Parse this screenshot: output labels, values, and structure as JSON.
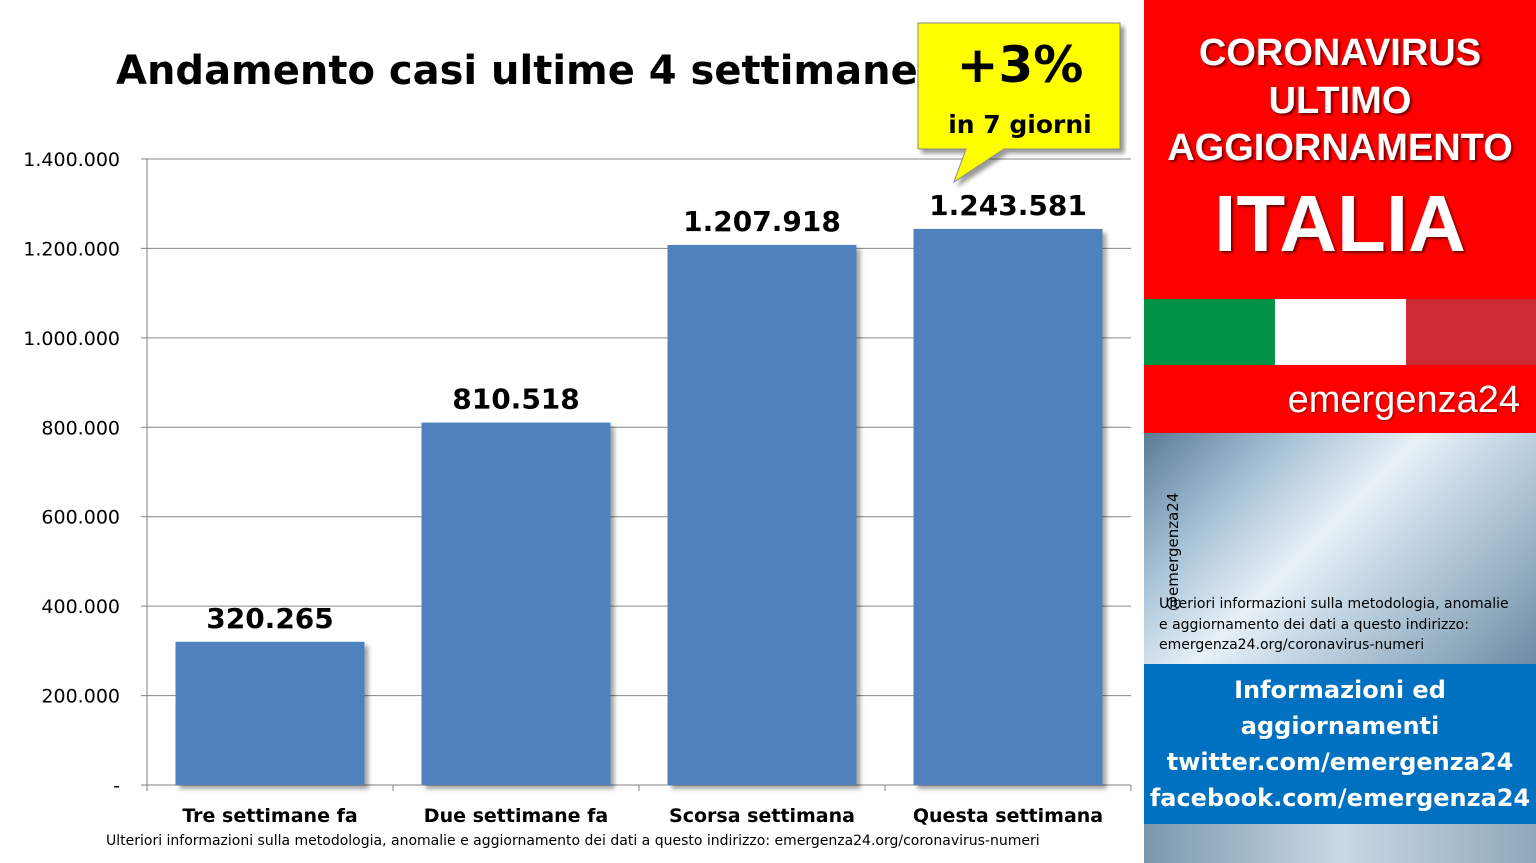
{
  "chart_data": {
    "type": "bar",
    "title": "Andamento casi ultime 4 settimane",
    "categories": [
      "Tre settimane fa",
      "Due settimane fa",
      "Scorsa settimana",
      "Questa settimana"
    ],
    "values": [
      320265,
      810518,
      1207918,
      1243581
    ],
    "value_labels": [
      "320.265",
      "810.518",
      "1.207.918",
      "1.243.581"
    ],
    "ylim": [
      0,
      1400000
    ],
    "y_ticks": [
      0,
      200000,
      400000,
      600000,
      800000,
      1000000,
      1200000,
      1400000
    ],
    "y_tick_labels": [
      "-",
      "200.000",
      "400.000",
      "600.000",
      "800.000",
      "1.000.000",
      "1.200.000",
      "1.400.000"
    ],
    "grid": true,
    "bar_color": "#4f81bd"
  },
  "callout": {
    "percent": "+3%",
    "subtitle": "in 7 giorni",
    "color": "#ffff00"
  },
  "footnote": "Ulteriori informazioni sulla metodologia, anomalie e aggiornamento dei dati a questo indirizzo: emergenza24.org/coronavirus-numeri",
  "sidebar": {
    "header_line_1": "CORONAVIRUS",
    "header_line_2": "ULTIMO",
    "header_line_3": "AGGIORNAMENTO",
    "country": "ITALIA",
    "brand": "emergenza24",
    "handle": "@emergenza24",
    "info_line_1": "Ulteriori informazioni sulla metodologia, anomalie",
    "info_line_2": "e aggiornamento dei dati a questo indirizzo:",
    "info_line_3": "emergenza24.org/coronavirus-numeri",
    "social_line_1": "Informazioni ed",
    "social_line_2": "aggiornamenti",
    "social_line_3": "twitter.com/emergenza24",
    "social_line_4": "facebook.com/emergenza24",
    "colors": {
      "red": "#ff0000",
      "blue": "#0070c0",
      "flag_green": "#009246",
      "flag_red": "#ce2b37"
    }
  }
}
